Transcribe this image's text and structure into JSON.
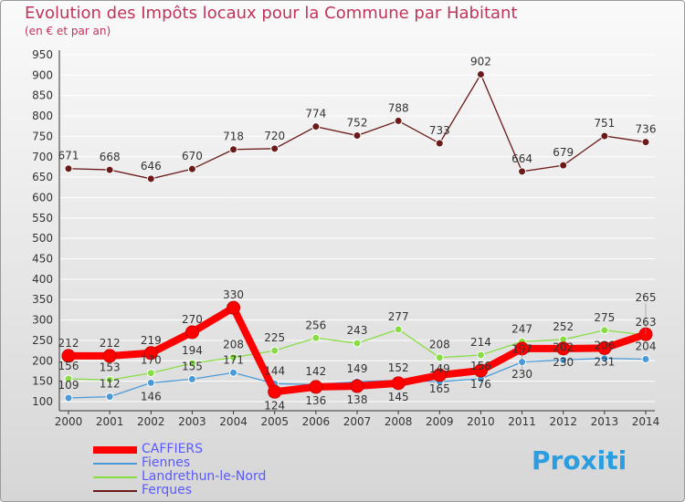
{
  "chart_data": {
    "type": "line",
    "title": "Evolution des Impôts locaux pour la Commune par Habitant",
    "subtitle": "(en € et par an)",
    "xlabel": "",
    "ylabel": "",
    "x": [
      "2000",
      "2001",
      "2002",
      "2003",
      "2004",
      "2005",
      "2006",
      "2007",
      "2008",
      "2009",
      "2010",
      "2011",
      "2012",
      "2013",
      "2014"
    ],
    "yticks": [
      100,
      150,
      200,
      250,
      300,
      350,
      400,
      450,
      500,
      550,
      600,
      650,
      700,
      750,
      800,
      850,
      900,
      950
    ],
    "ylim": [
      100,
      950
    ],
    "grid": true,
    "legend_position": "bottom-left",
    "series": [
      {
        "name": "CAFFIERS",
        "color": "#ff0000",
        "values": [
          212,
          212,
          219,
          270,
          330,
          124,
          136,
          138,
          145,
          165,
          176,
          230,
          230,
          231,
          265
        ]
      },
      {
        "name": "Fiennes",
        "color": "#4a9ad8",
        "values": [
          109,
          112,
          146,
          155,
          171,
          144,
          142,
          149,
          152,
          149,
          156,
          197,
          202,
          206,
          204
        ]
      },
      {
        "name": "Landrethun-le-Nord",
        "color": "#88dd44",
        "values": [
          156,
          153,
          170,
          194,
          208,
          225,
          256,
          243,
          277,
          208,
          214,
          247,
          252,
          275,
          263
        ]
      },
      {
        "name": "Ferques",
        "color": "#6b1a1a",
        "values": [
          671,
          668,
          646,
          670,
          718,
          720,
          774,
          752,
          788,
          733,
          902,
          664,
          679,
          751,
          736
        ]
      }
    ]
  },
  "logo": "Proxiti"
}
